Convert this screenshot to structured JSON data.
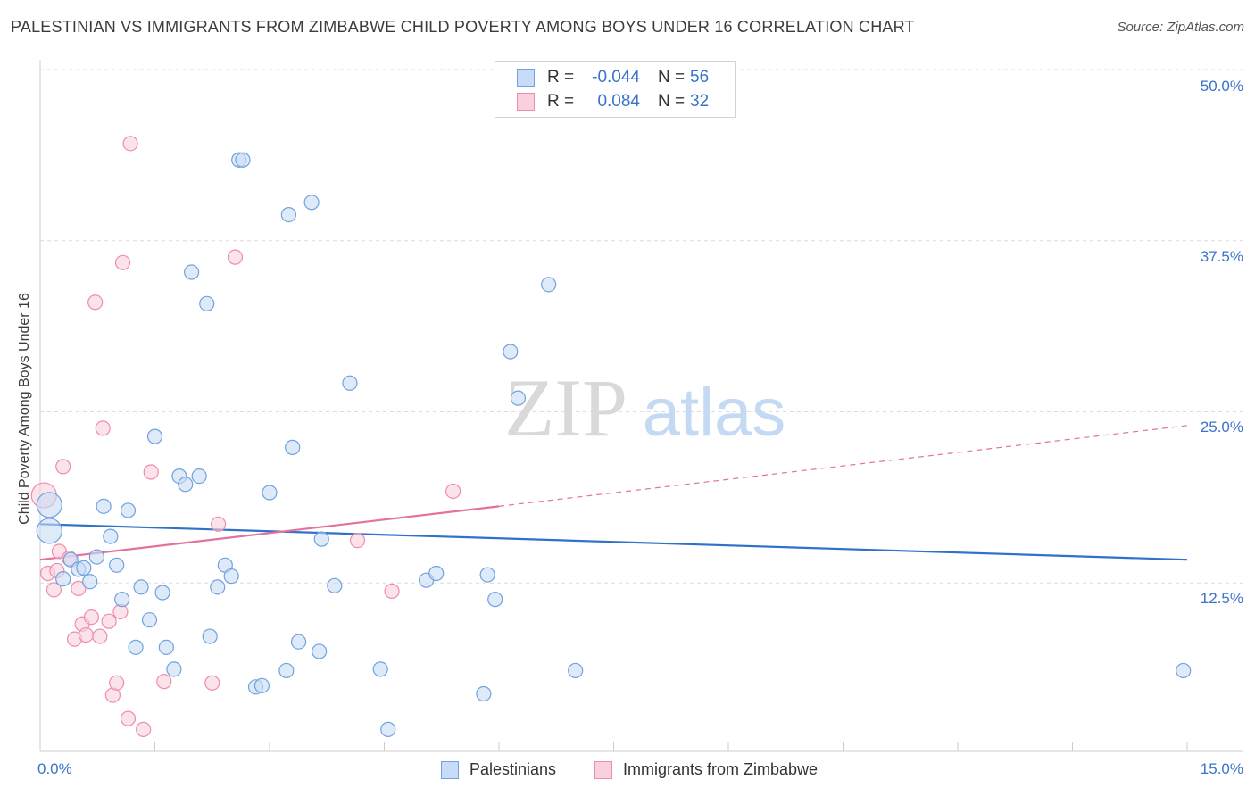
{
  "chart_data": {
    "type": "scatter",
    "title": "PALESTINIAN VS IMMIGRANTS FROM ZIMBABWE CHILD POVERTY AMONG BOYS UNDER 16 CORRELATION CHART",
    "source": "Source: ZipAtlas.com",
    "ylabel": "Child Poverty Among Boys Under 16",
    "xlabel": "",
    "xlim": [
      0,
      15
    ],
    "ylim": [
      0,
      50
    ],
    "x_tick_labels": [
      "0.0%",
      "15.0%"
    ],
    "y_ticks": [
      12.5,
      25.0,
      37.5,
      50.0
    ],
    "y_tick_labels": [
      "12.5%",
      "25.0%",
      "37.5%",
      "50.0%"
    ],
    "grid": true,
    "watermark": {
      "zip": "ZIP",
      "atlas": "atlas"
    },
    "legend_position": "top-center",
    "legend": [
      {
        "r_label": "R =",
        "r_value": "-0.044",
        "n_label": "N =",
        "n_value": "56"
      },
      {
        "r_label": "R =",
        "r_value": "0.084",
        "n_label": "N =",
        "n_value": "32"
      }
    ],
    "series": [
      {
        "name": "Palestinians",
        "color": "#6fa2e0",
        "fill": "#c9dcf5",
        "trend_color": "#2f72c9",
        "trend": {
          "x0": 0.0,
          "y0": 16.8,
          "x1": 15.0,
          "y1": 14.2
        },
        "points": [
          {
            "x": 0.12,
            "y": 18.2,
            "big": true
          },
          {
            "x": 0.12,
            "y": 16.3,
            "big": true
          },
          {
            "x": 0.3,
            "y": 12.8
          },
          {
            "x": 0.4,
            "y": 14.2
          },
          {
            "x": 0.5,
            "y": 13.5
          },
          {
            "x": 0.57,
            "y": 13.6
          },
          {
            "x": 0.65,
            "y": 12.6
          },
          {
            "x": 0.74,
            "y": 14.4
          },
          {
            "x": 0.83,
            "y": 18.1
          },
          {
            "x": 0.92,
            "y": 15.9
          },
          {
            "x": 1.0,
            "y": 13.8
          },
          {
            "x": 1.07,
            "y": 11.3
          },
          {
            "x": 1.15,
            "y": 17.8
          },
          {
            "x": 1.25,
            "y": 7.8
          },
          {
            "x": 1.32,
            "y": 12.2
          },
          {
            "x": 1.43,
            "y": 9.8
          },
          {
            "x": 1.5,
            "y": 23.2
          },
          {
            "x": 1.6,
            "y": 11.8
          },
          {
            "x": 1.65,
            "y": 7.8
          },
          {
            "x": 1.75,
            "y": 6.2
          },
          {
            "x": 1.82,
            "y": 20.3
          },
          {
            "x": 1.9,
            "y": 19.7
          },
          {
            "x": 1.98,
            "y": 35.2
          },
          {
            "x": 2.08,
            "y": 20.3
          },
          {
            "x": 2.18,
            "y": 32.9
          },
          {
            "x": 2.22,
            "y": 8.6
          },
          {
            "x": 2.32,
            "y": 12.2
          },
          {
            "x": 2.42,
            "y": 13.8
          },
          {
            "x": 2.5,
            "y": 13.0
          },
          {
            "x": 2.6,
            "y": 43.4
          },
          {
            "x": 2.65,
            "y": 43.4
          },
          {
            "x": 2.82,
            "y": 4.9
          },
          {
            "x": 2.9,
            "y": 5.0
          },
          {
            "x": 3.0,
            "y": 19.1
          },
          {
            "x": 3.22,
            "y": 6.1
          },
          {
            "x": 3.25,
            "y": 39.4
          },
          {
            "x": 3.3,
            "y": 22.4
          },
          {
            "x": 3.38,
            "y": 8.2
          },
          {
            "x": 3.55,
            "y": 40.3
          },
          {
            "x": 3.65,
            "y": 7.5
          },
          {
            "x": 3.68,
            "y": 15.7
          },
          {
            "x": 3.85,
            "y": 12.3
          },
          {
            "x": 4.05,
            "y": 27.1
          },
          {
            "x": 4.45,
            "y": 6.2
          },
          {
            "x": 4.55,
            "y": 1.8
          },
          {
            "x": 5.05,
            "y": 12.7
          },
          {
            "x": 5.18,
            "y": 13.2
          },
          {
            "x": 5.8,
            "y": 4.4
          },
          {
            "x": 5.85,
            "y": 13.1
          },
          {
            "x": 5.95,
            "y": 11.3
          },
          {
            "x": 6.15,
            "y": 29.4
          },
          {
            "x": 6.25,
            "y": 26.0
          },
          {
            "x": 6.65,
            "y": 34.3
          },
          {
            "x": 7.0,
            "y": 6.1
          },
          {
            "x": 14.95,
            "y": 6.1
          }
        ]
      },
      {
        "name": "Immigrants from Zimbabwe",
        "color": "#f08cab",
        "fill": "#f9d0dd",
        "trend_color": "#e3729c",
        "trend": {
          "x0": 0.0,
          "y0": 14.2,
          "x1": 6.0,
          "y1": 18.1,
          "dashed_to_x": 15.0,
          "dashed_to_y": 24.0
        },
        "points": [
          {
            "x": 0.05,
            "y": 18.9,
            "big": true
          },
          {
            "x": 0.1,
            "y": 13.2
          },
          {
            "x": 0.18,
            "y": 12.0
          },
          {
            "x": 0.22,
            "y": 13.4
          },
          {
            "x": 0.25,
            "y": 14.8
          },
          {
            "x": 0.3,
            "y": 21.0
          },
          {
            "x": 0.38,
            "y": 14.3
          },
          {
            "x": 0.45,
            "y": 8.4
          },
          {
            "x": 0.5,
            "y": 12.1
          },
          {
            "x": 0.55,
            "y": 9.5
          },
          {
            "x": 0.6,
            "y": 8.7
          },
          {
            "x": 0.67,
            "y": 10.0
          },
          {
            "x": 0.72,
            "y": 33.0
          },
          {
            "x": 0.78,
            "y": 8.6
          },
          {
            "x": 0.82,
            "y": 23.8
          },
          {
            "x": 0.9,
            "y": 9.7
          },
          {
            "x": 0.95,
            "y": 4.3
          },
          {
            "x": 1.0,
            "y": 5.2
          },
          {
            "x": 1.05,
            "y": 10.4
          },
          {
            "x": 1.08,
            "y": 35.9
          },
          {
            "x": 1.15,
            "y": 2.6
          },
          {
            "x": 1.18,
            "y": 44.6
          },
          {
            "x": 1.35,
            "y": 1.8
          },
          {
            "x": 1.45,
            "y": 20.6
          },
          {
            "x": 1.62,
            "y": 5.3
          },
          {
            "x": 2.25,
            "y": 5.2
          },
          {
            "x": 2.33,
            "y": 16.8
          },
          {
            "x": 2.55,
            "y": 36.3
          },
          {
            "x": 4.15,
            "y": 15.6
          },
          {
            "x": 4.6,
            "y": 11.9
          },
          {
            "x": 5.4,
            "y": 19.2
          }
        ]
      }
    ]
  }
}
